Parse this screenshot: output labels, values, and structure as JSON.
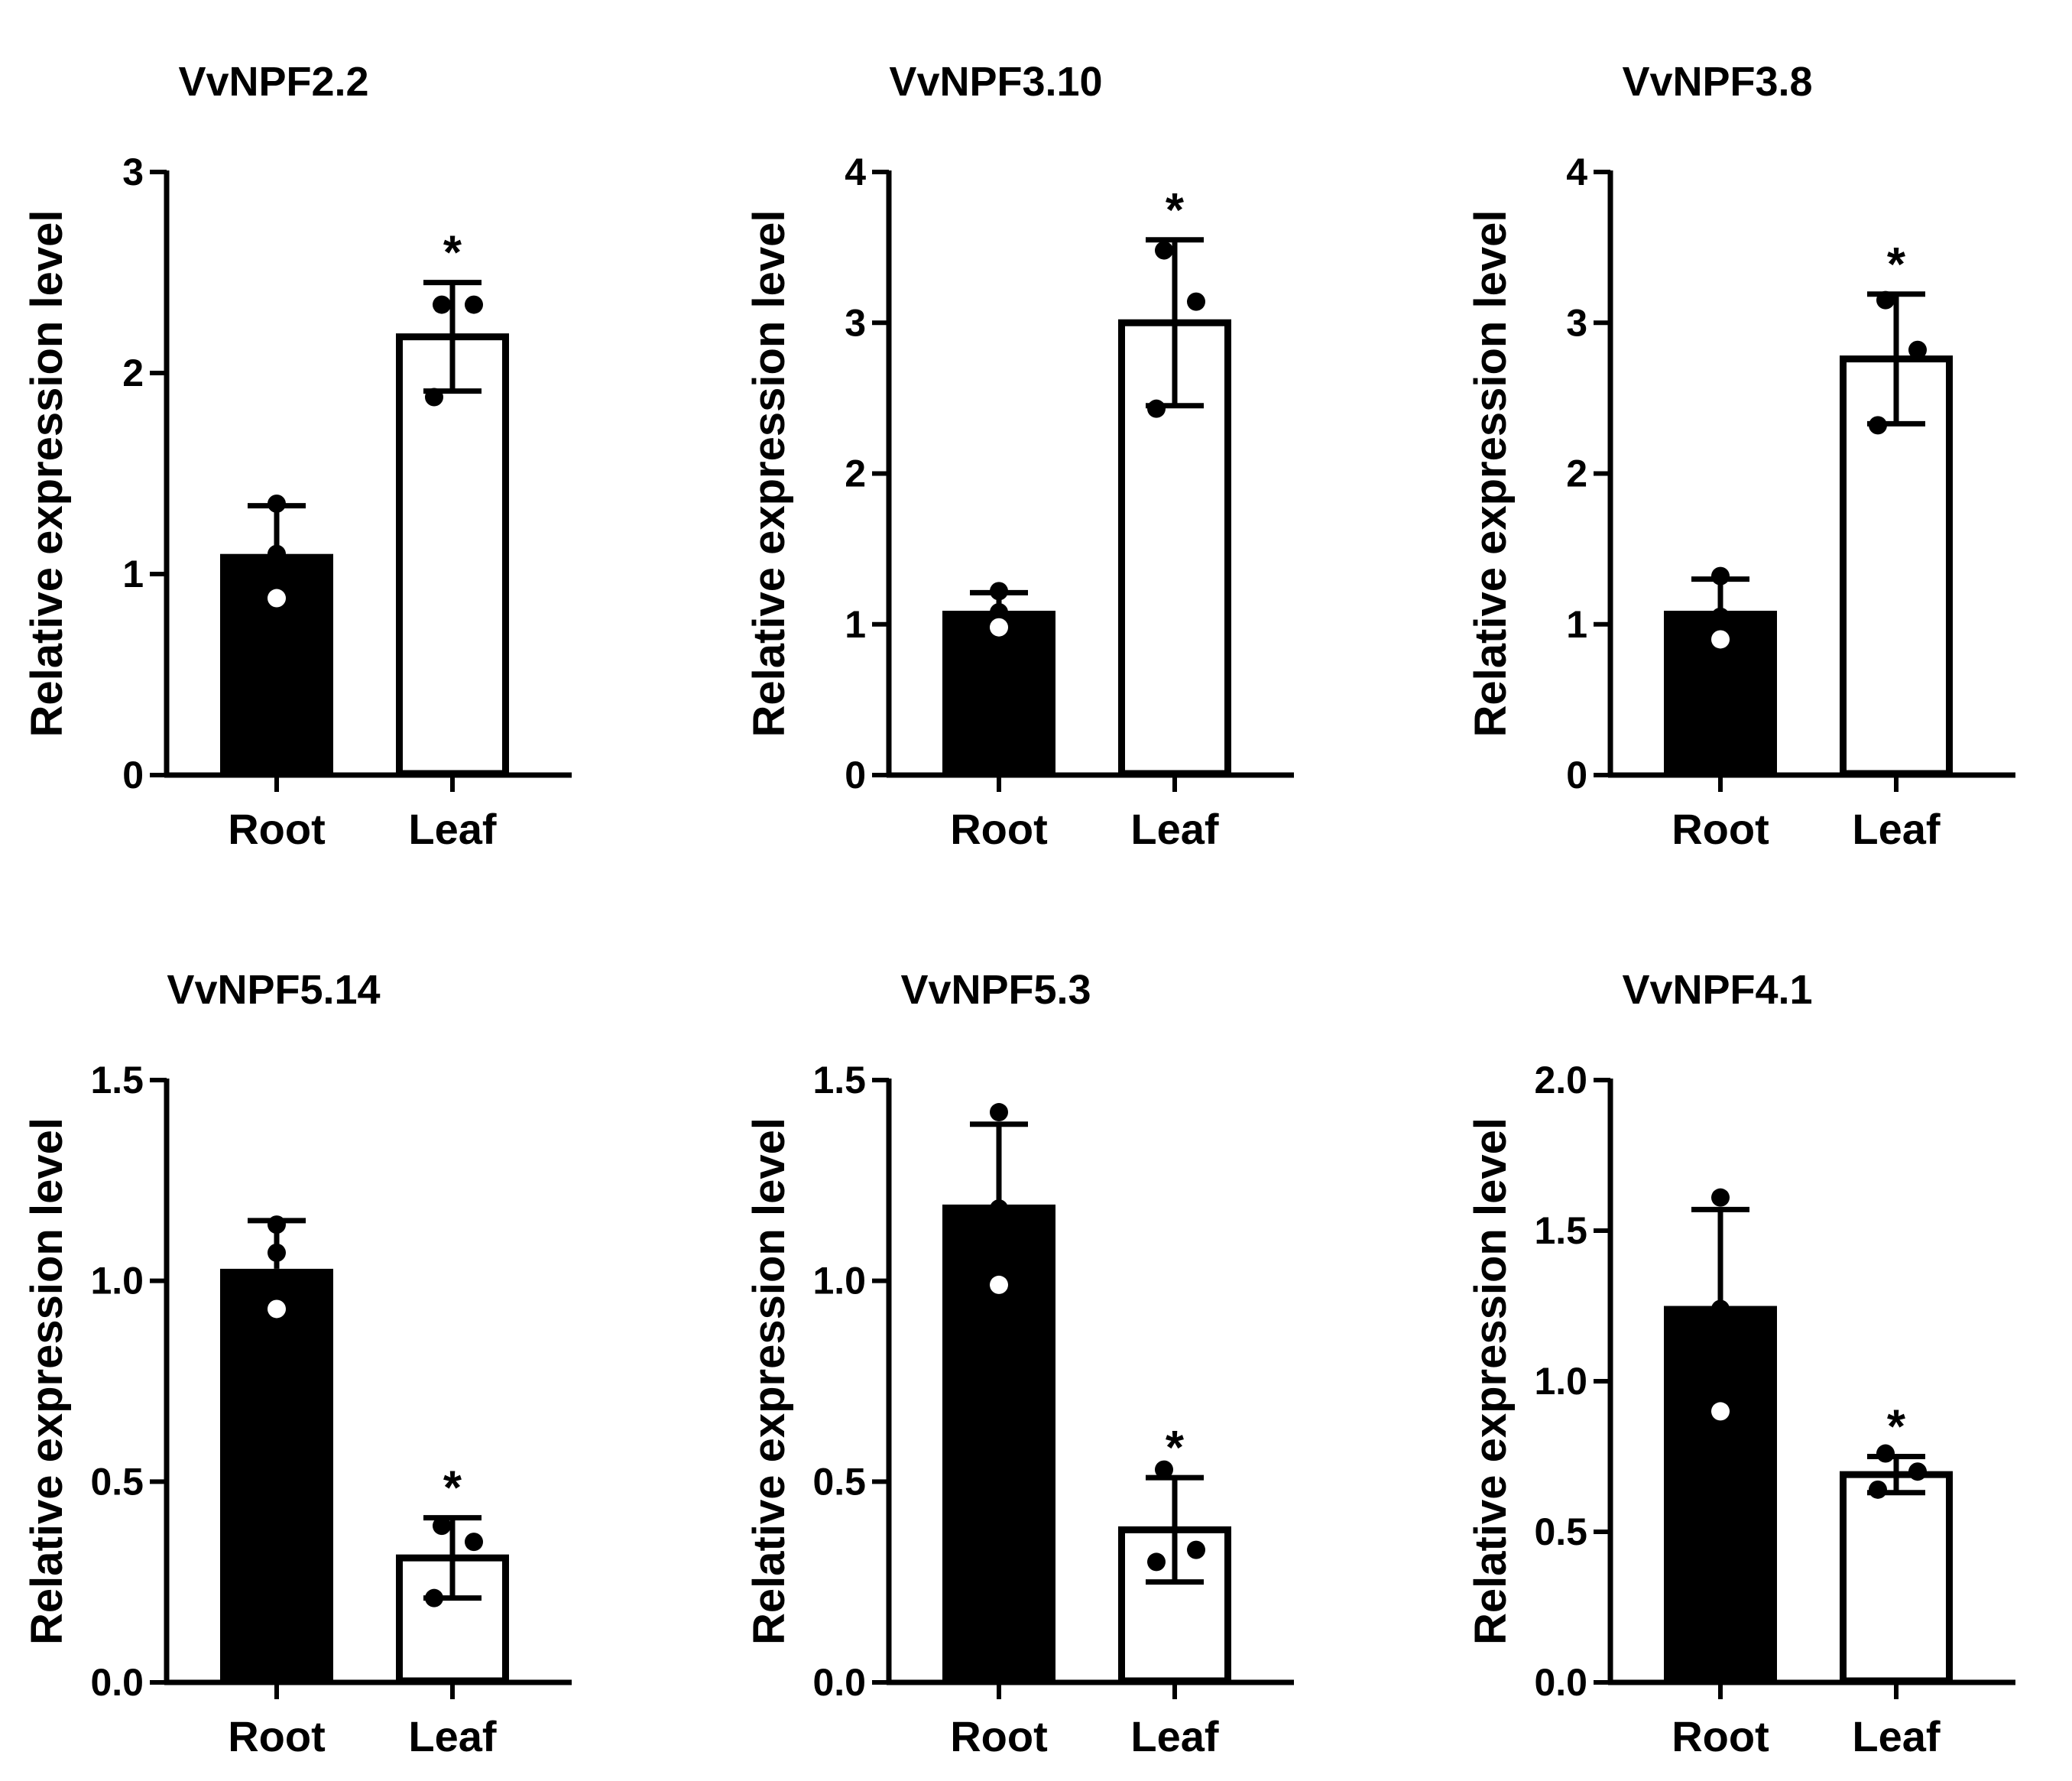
{
  "chart_data": [
    {
      "type": "bar",
      "title": "VvNPF2.2",
      "ylabel": "Relative expression level",
      "xlabel": "",
      "ylim": [
        0,
        3
      ],
      "yticks": [
        "0",
        "1",
        "2",
        "3"
      ],
      "categories": [
        "Root",
        "Leaf"
      ],
      "values": [
        1.1,
        2.18
      ],
      "errors": [
        0.24,
        0.27
      ],
      "points": [
        [
          1.35,
          1.1,
          0.88
        ],
        [
          2.34,
          2.34,
          1.88
        ]
      ],
      "fill_colors": [
        "#000000",
        "#ffffff"
      ],
      "significance": [
        "",
        "*"
      ]
    },
    {
      "type": "bar",
      "title": "VvNPF3.10",
      "ylabel": "Relative expression level",
      "xlabel": "",
      "ylim": [
        0,
        4
      ],
      "yticks": [
        "0",
        "1",
        "2",
        "3",
        "4"
      ],
      "categories": [
        "Root",
        "Leaf"
      ],
      "values": [
        1.09,
        3.0
      ],
      "errors": [
        0.12,
        0.55
      ],
      "points": [
        [
          1.22,
          1.08,
          0.98
        ],
        [
          3.48,
          3.14,
          2.43
        ]
      ],
      "fill_colors": [
        "#000000",
        "#ffffff"
      ],
      "significance": [
        "",
        "*"
      ]
    },
    {
      "type": "bar",
      "title": "VvNPF3.8",
      "ylabel": "Relative expression level",
      "xlabel": "",
      "ylim": [
        0,
        4
      ],
      "yticks": [
        "0",
        "1",
        "2",
        "3",
        "4"
      ],
      "categories": [
        "Root",
        "Leaf"
      ],
      "values": [
        1.09,
        2.76
      ],
      "errors": [
        0.21,
        0.43
      ],
      "points": [
        [
          1.32,
          1.05,
          0.9
        ],
        [
          3.15,
          2.82,
          2.32
        ]
      ],
      "fill_colors": [
        "#000000",
        "#ffffff"
      ],
      "significance": [
        "",
        "*"
      ]
    },
    {
      "type": "bar",
      "title": "VvNPF5.14",
      "ylabel": "Relative expression level",
      "xlabel": "",
      "ylim": [
        0,
        1.5
      ],
      "yticks": [
        "0.0",
        "0.5",
        "1.0",
        "1.5"
      ],
      "categories": [
        "Root",
        "Leaf"
      ],
      "values": [
        1.03,
        0.31
      ],
      "errors": [
        0.12,
        0.1
      ],
      "points": [
        [
          1.14,
          1.07,
          0.93
        ],
        [
          0.39,
          0.35,
          0.21
        ]
      ],
      "fill_colors": [
        "#000000",
        "#ffffff"
      ],
      "significance": [
        "",
        "*"
      ]
    },
    {
      "type": "bar",
      "title": "VvNPF5.3",
      "ylabel": "Relative expression level",
      "xlabel": "",
      "ylim": [
        0,
        1.5
      ],
      "yticks": [
        "0.0",
        "0.5",
        "1.0",
        "1.5"
      ],
      "categories": [
        "Root",
        "Leaf"
      ],
      "values": [
        1.19,
        0.38
      ],
      "errors": [
        0.2,
        0.13
      ],
      "points": [
        [
          1.42,
          1.18,
          0.99
        ],
        [
          0.53,
          0.33,
          0.3
        ]
      ],
      "fill_colors": [
        "#000000",
        "#ffffff"
      ],
      "significance": [
        "",
        "*"
      ]
    },
    {
      "type": "bar",
      "title": "VvNPF4.1",
      "ylabel": "Relative expression level",
      "xlabel": "",
      "ylim": [
        0,
        2
      ],
      "yticks": [
        "0.0",
        "0.5",
        "1.0",
        "1.5",
        "2.0"
      ],
      "categories": [
        "Root",
        "Leaf"
      ],
      "values": [
        1.25,
        0.69
      ],
      "errors": [
        0.32,
        0.06
      ],
      "points": [
        [
          1.61,
          1.24,
          0.9
        ],
        [
          0.76,
          0.7,
          0.64
        ]
      ],
      "fill_colors": [
        "#000000",
        "#ffffff"
      ],
      "significance": [
        "",
        "*"
      ]
    }
  ]
}
